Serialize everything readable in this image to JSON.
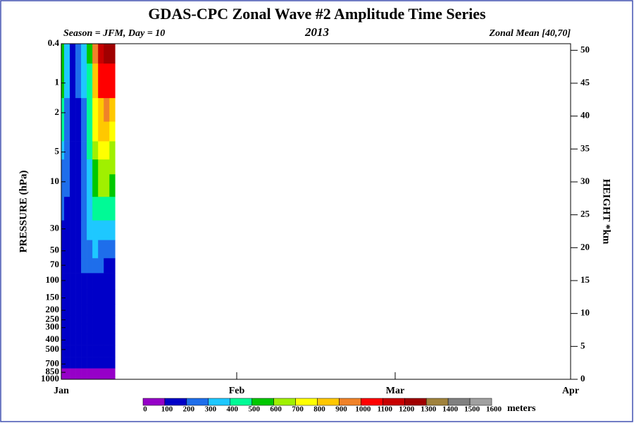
{
  "chart_data": {
    "type": "contour",
    "title": "GDAS-CPC Zonal Wave #2 Amplitude Time Series",
    "subtitle_left": "Season = JFM, Day =  10",
    "subtitle_center": "2013",
    "subtitle_right": "Zonal Mean [40,70]",
    "ylabel": "PRESSURE (hPa)",
    "y2label": "HEIGHT *km",
    "colorbar_label": "meters",
    "x": [
      0,
      1,
      2,
      3,
      4,
      5,
      6,
      7,
      8,
      9
    ],
    "xlim": [
      0,
      90
    ],
    "xticks": [
      {
        "value": 0,
        "label": "Jan"
      },
      {
        "value": 31,
        "label": "Feb"
      },
      {
        "value": 59,
        "label": "Mar"
      },
      {
        "value": 90,
        "label": "Apr"
      }
    ],
    "y": [
      1000,
      850,
      700,
      500,
      400,
      300,
      250,
      200,
      150,
      100,
      70,
      50,
      30,
      20,
      10,
      7,
      5,
      3,
      2,
      1,
      0.4
    ],
    "ylim": [
      1000,
      0.4
    ],
    "ylog": true,
    "yticks": [
      0.4,
      1,
      2,
      5,
      10,
      30,
      50,
      70,
      100,
      150,
      200,
      250,
      300,
      400,
      500,
      700,
      850,
      1000
    ],
    "y2lim": [
      0,
      51
    ],
    "y2ticks": [
      0,
      5,
      10,
      15,
      20,
      25,
      30,
      35,
      40,
      45,
      50
    ],
    "values": [
      [
        60,
        70,
        80,
        90,
        95,
        90,
        85,
        80,
        80,
        80
      ],
      [
        70,
        80,
        75,
        95,
        99,
        95,
        90,
        85,
        85,
        85
      ],
      [
        120,
        110,
        115,
        120,
        130,
        130,
        125,
        120,
        120,
        120
      ],
      [
        140,
        130,
        130,
        140,
        150,
        150,
        150,
        150,
        150,
        150
      ],
      [
        150,
        140,
        140,
        150,
        160,
        160,
        160,
        165,
        165,
        165
      ],
      [
        150,
        140,
        140,
        150,
        160,
        165,
        170,
        175,
        175,
        175
      ],
      [
        150,
        140,
        140,
        150,
        160,
        170,
        175,
        180,
        180,
        180
      ],
      [
        150,
        140,
        140,
        150,
        160,
        170,
        180,
        185,
        185,
        185
      ],
      [
        150,
        140,
        140,
        150,
        165,
        175,
        185,
        190,
        190,
        190
      ],
      [
        160,
        150,
        140,
        150,
        170,
        185,
        195,
        195,
        190,
        190
      ],
      [
        170,
        160,
        140,
        160,
        200,
        230,
        220,
        200,
        195,
        195
      ],
      [
        180,
        170,
        150,
        170,
        230,
        280,
        300,
        280,
        260,
        250
      ],
      [
        190,
        180,
        160,
        180,
        250,
        330,
        380,
        380,
        360,
        340
      ],
      [
        210,
        190,
        160,
        190,
        260,
        350,
        430,
        470,
        450,
        420
      ],
      [
        250,
        210,
        170,
        190,
        270,
        380,
        520,
        620,
        600,
        550
      ],
      [
        280,
        220,
        170,
        190,
        270,
        390,
        570,
        660,
        650,
        600
      ],
      [
        350,
        240,
        170,
        190,
        270,
        400,
        620,
        720,
        710,
        660
      ],
      [
        420,
        270,
        170,
        190,
        280,
        420,
        700,
        820,
        820,
        780
      ],
      [
        460,
        290,
        170,
        190,
        290,
        440,
        760,
        880,
        900,
        870
      ],
      [
        520,
        330,
        170,
        200,
        300,
        480,
        860,
        1000,
        1050,
        1020
      ],
      [
        560,
        360,
        180,
        210,
        320,
        520,
        980,
        1150,
        1250,
        1200
      ]
    ],
    "levels": [
      0,
      100,
      200,
      300,
      400,
      500,
      600,
      700,
      800,
      900,
      1000,
      1100,
      1200,
      1300,
      1400,
      1500,
      1600
    ],
    "colors": [
      "#9600c8",
      "#0000c8",
      "#1e6eeb",
      "#1ec8ff",
      "#00fa96",
      "#00c800",
      "#a0f000",
      "#ffff00",
      "#ffc800",
      "#f08228",
      "#ff0000",
      "#c80000",
      "#a00000",
      "#a0823c",
      "#808080",
      "#a0a0a0"
    ]
  }
}
